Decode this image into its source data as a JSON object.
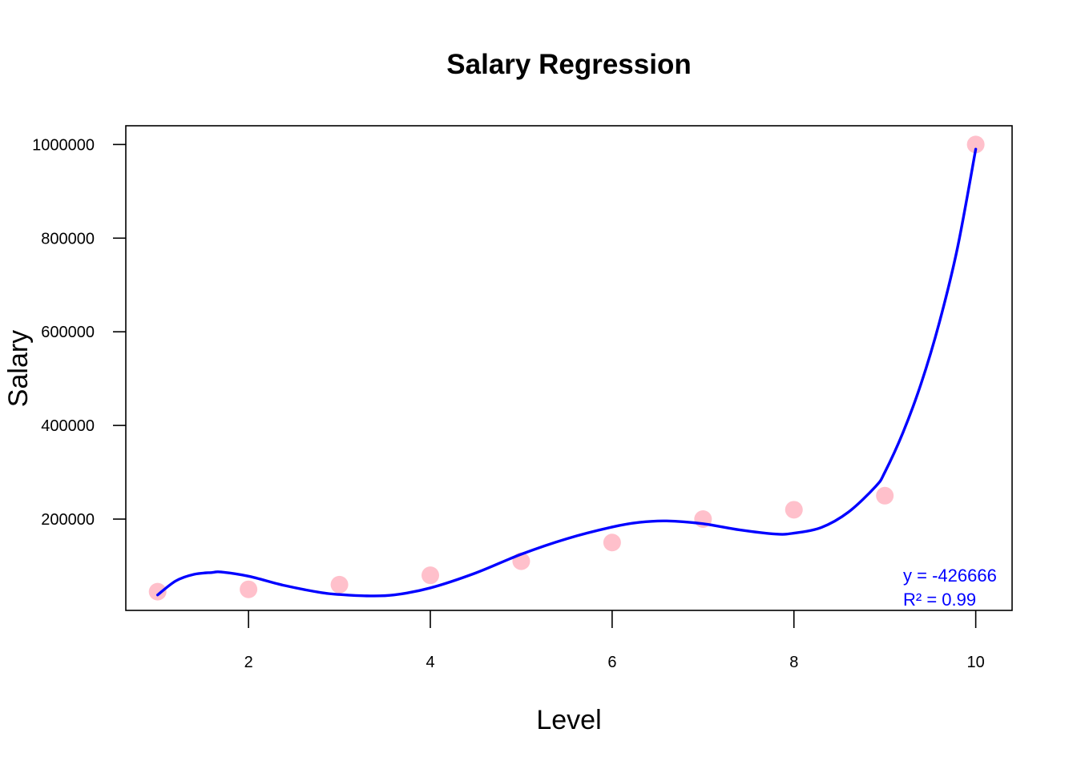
{
  "chart_data": {
    "type": "scatter",
    "title": "Salary Regression",
    "xlabel": "Level",
    "ylabel": "Salary",
    "xlim": [
      0.65,
      10.4
    ],
    "ylim": [
      5000,
      1040000
    ],
    "x_ticks": [
      2,
      4,
      6,
      8,
      10
    ],
    "x_tick_labels": [
      "2",
      "4",
      "6",
      "8",
      "10"
    ],
    "y_ticks": [
      200000,
      400000,
      600000,
      800000,
      1000000
    ],
    "y_tick_labels": [
      "200000",
      "400000",
      "600000",
      "800000",
      "1000000"
    ],
    "grid": false,
    "legend": "none",
    "series": [
      {
        "type": "scatter",
        "color": "#ffc0cb",
        "marker": "filled-circle",
        "x": [
          1,
          2,
          3,
          4,
          5,
          6,
          7,
          8,
          9,
          10
        ],
        "y": [
          45000,
          50000,
          60000,
          80000,
          110000,
          150000,
          200000,
          220000,
          250000,
          1000000
        ]
      },
      {
        "type": "line",
        "color": "#0000ff",
        "x": [
          1.0,
          1.2,
          1.4,
          1.6,
          1.7,
          2.0,
          2.4,
          2.8,
          3.0,
          3.3,
          3.6,
          4.0,
          4.5,
          5.0,
          5.5,
          6.0,
          6.3,
          6.6,
          7.0,
          7.4,
          7.8,
          8.0,
          8.3,
          8.6,
          8.9,
          9.0,
          9.2,
          9.4,
          9.6,
          9.8,
          10.0
        ],
        "y": [
          38000,
          68000,
          82000,
          86000,
          87000,
          78000,
          58000,
          43000,
          39000,
          36000,
          38000,
          53000,
          85000,
          125000,
          158000,
          183000,
          193000,
          196000,
          190000,
          177000,
          168000,
          170000,
          182000,
          215000,
          270000,
          300000,
          385000,
          490000,
          620000,
          780000,
          990000
        ]
      }
    ],
    "annotation": {
      "color": "#0000ff",
      "position": "bottom-right",
      "lines": [
        "y = -426666",
        "R² = 0.99"
      ]
    }
  }
}
